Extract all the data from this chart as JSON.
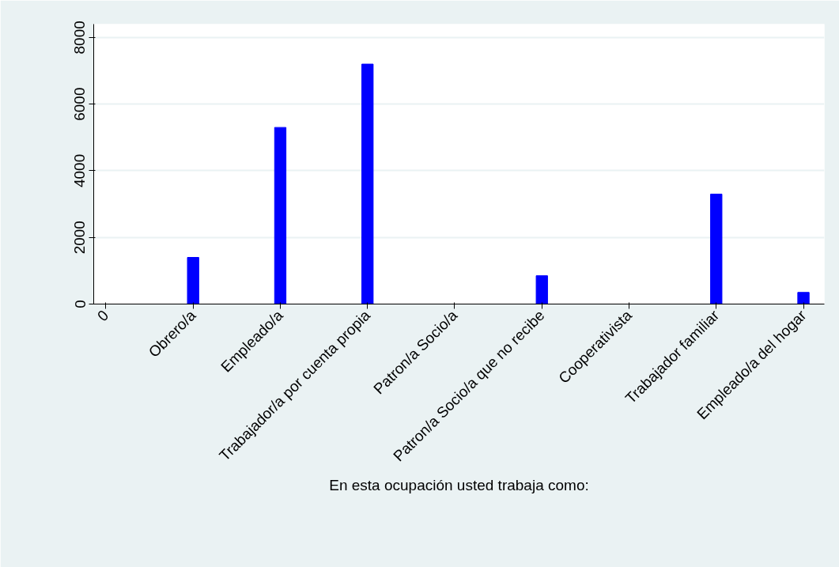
{
  "chart_data": {
    "type": "bar",
    "xlabel": "En esta ocupación usted trabaja como:",
    "categories": [
      "0",
      "Obrero/a",
      "Empleado/a",
      "Trabajador/a por cuenta propia",
      "Patron/a Socio/a",
      "Patron/a Socio/a que no recibe",
      "Cooperativista",
      "Trabajador familiar",
      "Empleado/a del hogar"
    ],
    "values": [
      0,
      1400,
      5300,
      7200,
      0,
      850,
      0,
      3300,
      350
    ],
    "color": "#0000ff",
    "ylim": [
      0,
      8400
    ],
    "yticks": [
      0,
      2000,
      4000,
      6000,
      8000
    ],
    "grid": "y"
  }
}
